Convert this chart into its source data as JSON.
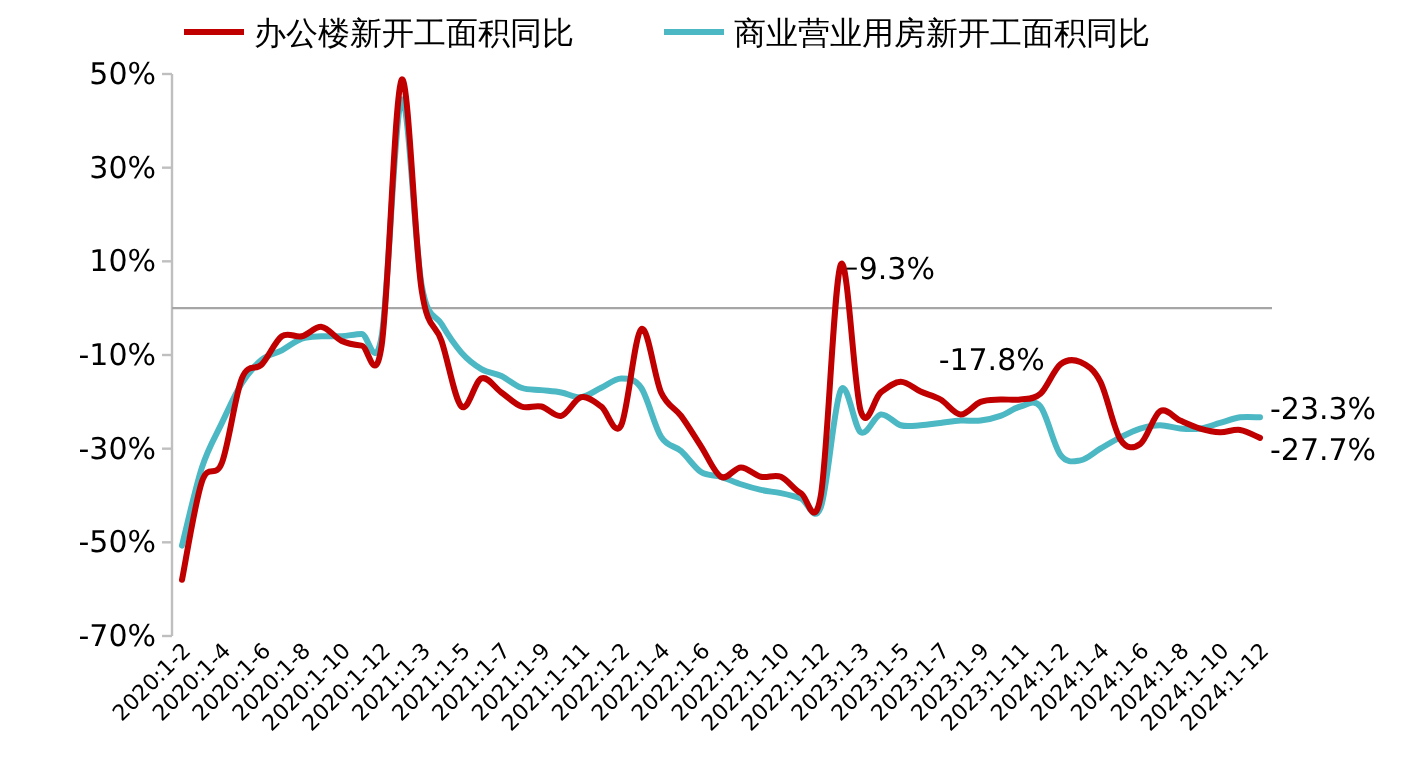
{
  "chart_data": {
    "type": "line",
    "categories": [
      "2020:1-2",
      null,
      "2020:1-4",
      null,
      "2020:1-6",
      null,
      "2020:1-8",
      null,
      "2020:1-10",
      null,
      "2020:1-12",
      null,
      "2021:1-3",
      null,
      "2021:1-5",
      null,
      "2021:1-7",
      null,
      "2021:1-9",
      null,
      "2021:1-11",
      null,
      "2022:1-2",
      null,
      "2022:1-4",
      null,
      "2022:1-6",
      null,
      "2022:1-8",
      null,
      "2022:1-10",
      null,
      "2022:1-12",
      null,
      "2023:1-3",
      null,
      "2023:1-5",
      null,
      "2023:1-7",
      null,
      "2023:1-9",
      null,
      "2023:1-11",
      null,
      "2024:1-2",
      null,
      "2024:1-4",
      null,
      "2024:1-6",
      null,
      "2024:1-8",
      null,
      "2024:1-10",
      null,
      "2024:1-12"
    ],
    "series": [
      {
        "name": "办公楼新开工面积同比",
        "color": "#c00000",
        "values": [
          -58,
          -37,
          -33,
          -15,
          -12,
          -6,
          -6,
          -4,
          -7,
          -8,
          -8,
          48.8,
          4,
          -7,
          -21,
          -15,
          -18,
          -21,
          -21,
          -23,
          -19,
          -21,
          -25,
          -4.5,
          -18,
          -23,
          -29.5,
          -36,
          -34,
          -36,
          -36,
          -39.5,
          -40,
          9.3,
          -22,
          -18,
          -15.7,
          -17.8,
          -19.5,
          -22.7,
          -20,
          -19.5,
          -19.5,
          -18.3,
          -12,
          -11.5,
          -15.7,
          -28,
          -29,
          -22,
          -24,
          -25.7,
          -26.5,
          -26,
          -27.7
        ],
        "value_labels": [
          null,
          null,
          null,
          null,
          null,
          null,
          null,
          null,
          null,
          null,
          null,
          null,
          null,
          null,
          null,
          null,
          null,
          null,
          null,
          null,
          null,
          null,
          null,
          null,
          null,
          null,
          null,
          null,
          null,
          null,
          null,
          null,
          null,
          "9.3%",
          null,
          null,
          null,
          "-17.8%",
          null,
          null,
          null,
          null,
          null,
          null,
          null,
          null,
          null,
          null,
          null,
          null,
          null,
          null,
          null,
          null,
          "-27.7%"
        ]
      },
      {
        "name": "商业营业用房新开工面积同比",
        "color": "#4bb8c4",
        "values": [
          -50.7,
          -34,
          -24.5,
          -16,
          -11,
          -9,
          -6.5,
          -6,
          -6,
          -5.5,
          -6,
          44.5,
          5,
          -3.4,
          -9.5,
          -13,
          -14.5,
          -17,
          -17.5,
          -18,
          -19,
          -17,
          -15,
          -17,
          -27.5,
          -30.5,
          -35,
          -36,
          -37.6,
          -38.8,
          -39.5,
          -40.6,
          -42.5,
          -17.5,
          -26.5,
          -22.7,
          -25,
          -25,
          -24.5,
          -24,
          -24,
          -23,
          -21,
          -21,
          -31.3,
          -32.5,
          -30,
          -27.6,
          -25.7,
          -25,
          -25.7,
          -25.7,
          -24.5,
          -23.3,
          -23.3
        ],
        "value_labels": [
          null,
          null,
          null,
          null,
          null,
          null,
          null,
          null,
          null,
          null,
          null,
          null,
          null,
          null,
          null,
          null,
          null,
          null,
          null,
          null,
          null,
          null,
          null,
          null,
          null,
          null,
          null,
          null,
          null,
          null,
          null,
          null,
          null,
          null,
          null,
          null,
          null,
          null,
          null,
          null,
          null,
          null,
          null,
          null,
          null,
          null,
          null,
          null,
          null,
          null,
          null,
          null,
          null,
          null,
          "-23.3%"
        ]
      }
    ],
    "ylim": [
      -70,
      50
    ],
    "yticks": [
      {
        "value": -70,
        "label": "-70%"
      },
      {
        "value": -50,
        "label": "-50%"
      },
      {
        "value": -30,
        "label": "-30%"
      },
      {
        "value": -10,
        "label": "-10%"
      },
      {
        "value": 10,
        "label": "10%"
      },
      {
        "value": 30,
        "label": "30%"
      },
      {
        "value": 50,
        "label": "50%"
      }
    ],
    "grid": false,
    "legend": "top",
    "marker": "none",
    "line_style": "solid"
  }
}
